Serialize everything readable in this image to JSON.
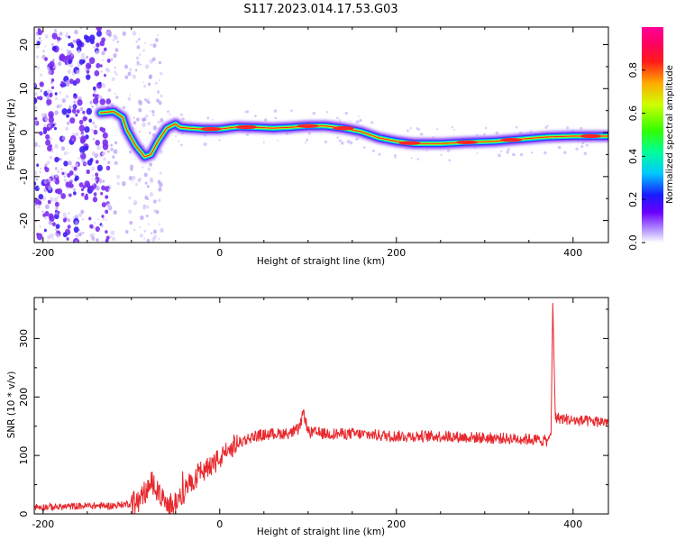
{
  "title": "S117.2023.014.17.53.G03",
  "colors": {
    "snr_line": "#e8282d",
    "spectrum_core": "#e8242a",
    "spectrum_halo": "#6a00ff",
    "scatter": "#7a3cf0"
  },
  "chart_data": [
    {
      "type": "heatmap",
      "title": "S117.2023.014.17.53.G03",
      "xlabel": "Height of straight line (km)",
      "ylabel": "Frequency (Hz)",
      "xlim": [
        -210,
        440
      ],
      "ylim": [
        -25,
        24
      ],
      "xticks": [
        -200,
        0,
        200,
        400
      ],
      "xtick_labels": [
        "-200",
        "0",
        "200",
        "400"
      ],
      "yticks": [
        -20,
        -10,
        0,
        10,
        20
      ],
      "ytick_labels": [
        "-20",
        "-10",
        "0",
        "10",
        "20"
      ],
      "grid": false,
      "colorbar": {
        "label": "Normalized spectral amplitude",
        "range": [
          0,
          1
        ],
        "ticks": [
          0.0,
          0.2,
          0.4,
          0.6,
          0.8
        ],
        "tick_labels": [
          "0.0",
          "0.2",
          "0.4",
          "0.6",
          "0.8"
        ],
        "colormap": "rainbow (purple-blue-cyan-green-yellow-red-pink)"
      },
      "ridge": {
        "x": [
          -135,
          -120,
          -110,
          -105,
          -95,
          -85,
          -78,
          -70,
          -60,
          -50,
          -45,
          -35,
          -20,
          0,
          20,
          40,
          60,
          80,
          100,
          120,
          140,
          160,
          180,
          200,
          220,
          250,
          280,
          310,
          340,
          370,
          400,
          440
        ],
        "y": [
          4.5,
          4.8,
          3.5,
          0.5,
          -3.0,
          -5.5,
          -5.0,
          -2.0,
          1.0,
          2.0,
          1.2,
          1.0,
          0.8,
          0.8,
          1.3,
          1.2,
          1.0,
          1.2,
          1.5,
          1.5,
          1.0,
          0.2,
          -1.2,
          -2.0,
          -2.5,
          -2.5,
          -2.2,
          -2.0,
          -1.5,
          -1.0,
          -0.8,
          -0.8
        ]
      },
      "noise_region_x": [
        -210,
        -85
      ]
    },
    {
      "type": "line",
      "xlabel": "Height of straight line (km)",
      "ylabel": "SNR (10 * v/v)",
      "xlim": [
        -210,
        440
      ],
      "ylim": [
        0,
        370
      ],
      "xticks": [
        -200,
        0,
        200,
        400
      ],
      "xtick_labels": [
        "-200",
        "0",
        "200",
        "400"
      ],
      "yticks": [
        0,
        100,
        200,
        300
      ],
      "ytick_labels": [
        "0",
        "100",
        "200",
        "300"
      ],
      "grid": false,
      "series": [
        {
          "x": [
            -210,
            -180,
            -150,
            -120,
            -100,
            -90,
            -80,
            -75,
            -70,
            -60,
            -50,
            -40,
            -30,
            -20,
            -10,
            0,
            10,
            20,
            30,
            40,
            60,
            80,
            90,
            95,
            100,
            120,
            150,
            200,
            250,
            300,
            350,
            370,
            375,
            377,
            380,
            400,
            420,
            440
          ],
          "y": [
            12,
            12,
            14,
            14,
            18,
            25,
            45,
            55,
            40,
            12,
            20,
            40,
            60,
            75,
            85,
            95,
            108,
            120,
            128,
            133,
            137,
            138,
            145,
            175,
            140,
            137,
            137,
            133,
            133,
            130,
            128,
            125,
            135,
            360,
            165,
            160,
            158,
            158
          ]
        }
      ]
    }
  ]
}
